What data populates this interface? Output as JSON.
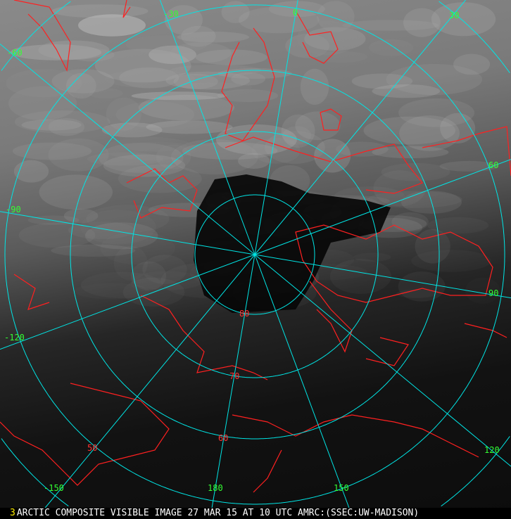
{
  "image": {
    "frame_number": "3",
    "caption": "ARCTIC COMPOSITE VISIBLE IMAGE 27 MAR 15 AT 10 UTC AMRC:(SSEC:UW-MADISON)"
  },
  "grid": {
    "line_color": "#00e5e5",
    "label_color": "#33ff33",
    "coastline_color": "#ff2020",
    "longitude_labels": [
      "-30",
      "0",
      "30",
      "-60",
      "60",
      "-90",
      "90",
      "-120",
      "120",
      "-150",
      "150",
      "180"
    ],
    "latitude_labels": [
      "80",
      "70",
      "60",
      "50"
    ]
  }
}
